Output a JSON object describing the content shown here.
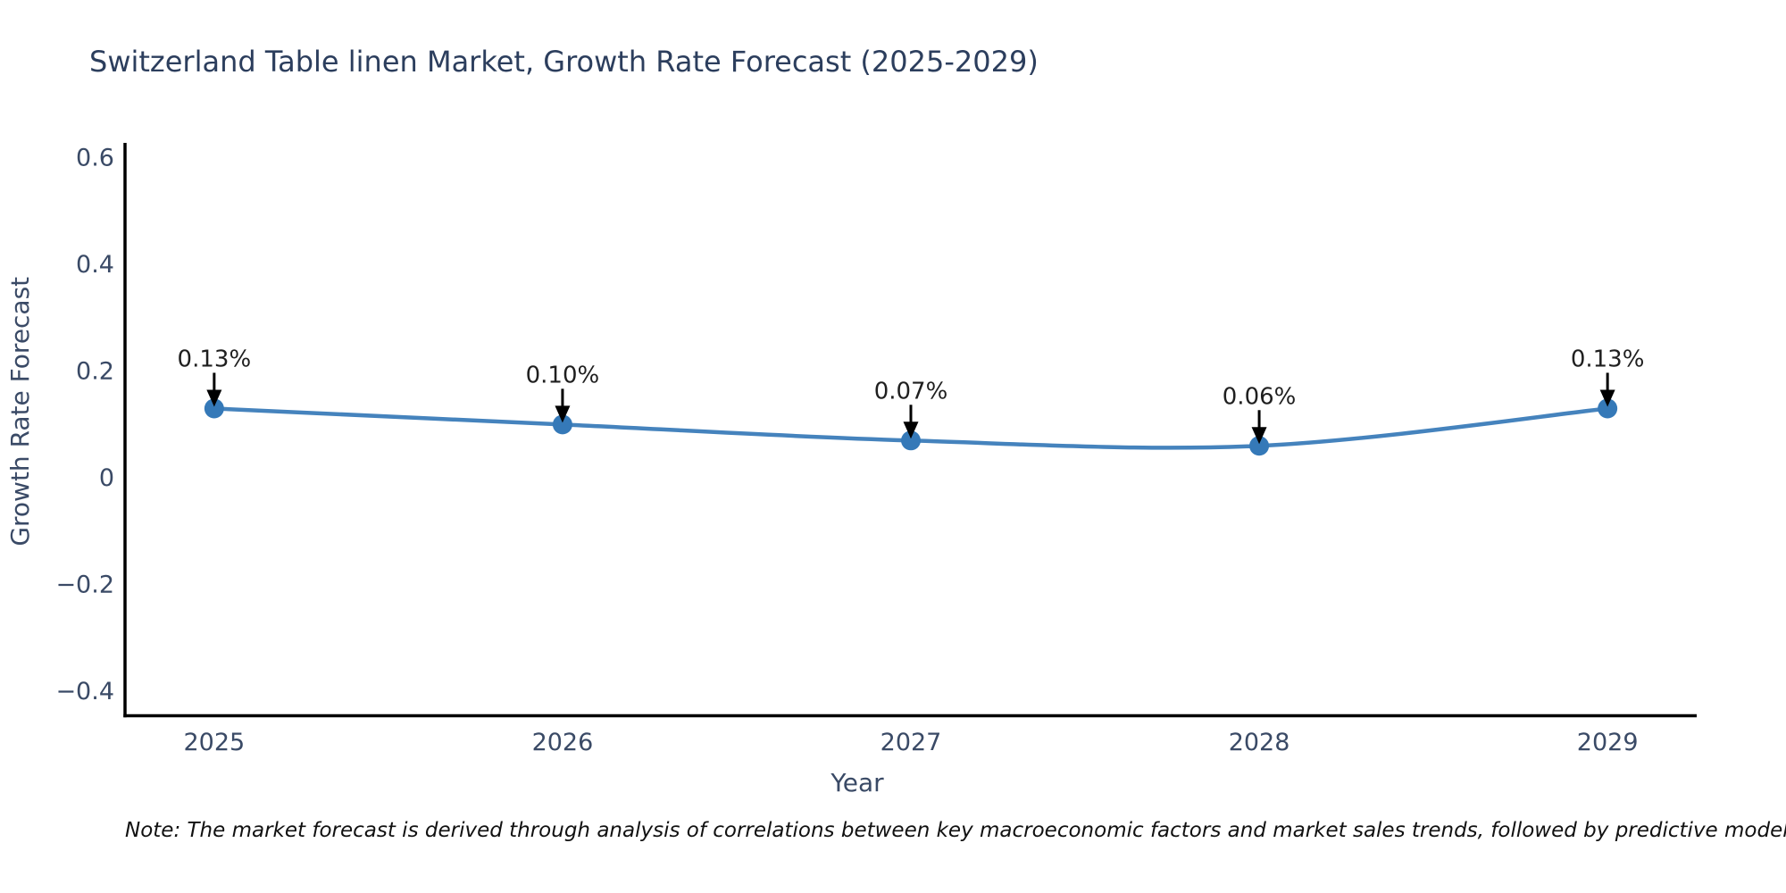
{
  "chart_data": {
    "type": "line",
    "title": "Switzerland Table linen Market, Growth Rate Forecast (2025-2029)",
    "xlabel": "Year",
    "ylabel": "Growth Rate Forecast",
    "x": [
      2025,
      2026,
      2027,
      2028,
      2029
    ],
    "y": [
      0.13,
      0.1,
      0.07,
      0.06,
      0.13
    ],
    "series": [
      {
        "name": "Growth Rate Forecast",
        "values": [
          0.13,
          0.1,
          0.07,
          0.06,
          0.13
        ]
      }
    ],
    "point_labels": [
      "0.13%",
      "0.10%",
      "0.07%",
      "0.06%",
      "0.13%"
    ],
    "xtick_labels": [
      "2025",
      "2026",
      "2027",
      "2028",
      "2029"
    ],
    "ytick_values": [
      0.6,
      0.4,
      0.2,
      0,
      -0.2,
      -0.4
    ],
    "ytick_labels": [
      "0.6",
      "0.4",
      "0.2",
      "0",
      "−0.2",
      "−0.4"
    ],
    "xlim": [
      2024.744,
      2029.256
    ],
    "ylim": [
      -0.446,
      0.628
    ],
    "grid": false,
    "legend": "none",
    "colors": {
      "line": "#4583bd",
      "marker": "#3579b8",
      "axis": "#000000",
      "tick_label": "#3a4a66",
      "axis_title": "#3a4a66",
      "title": "#2c3e5d",
      "annotation_text": "#1f1f1f",
      "annotation_arrow": "#000000"
    }
  },
  "note": {
    "text": "Note: The market forecast is derived through analysis of correlations between key macroeconomic factors and market sales trends, followed by predictive modeling to project future sales"
  }
}
